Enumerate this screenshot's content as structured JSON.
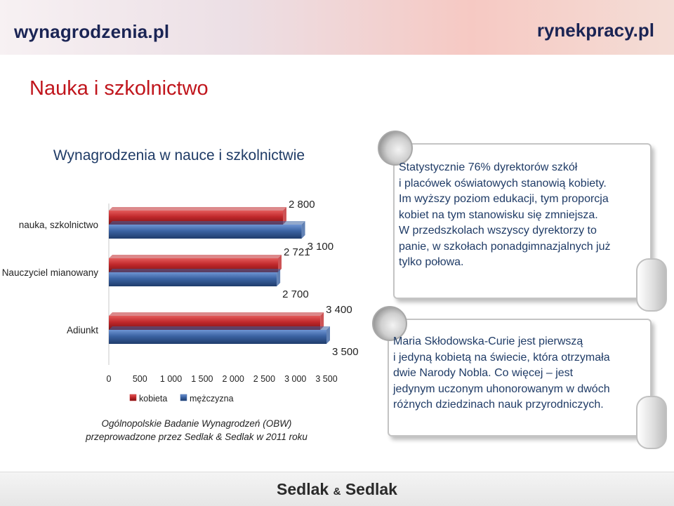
{
  "header": {
    "logo_left": "wynagrodzenia.pl",
    "logo_right": "rynekpracy.pl"
  },
  "page_title": "Nauka i szkolnictwo",
  "chart_data": {
    "type": "bar",
    "orientation": "horizontal",
    "title": "Wynagrodzenia w nauce i szkolnictwie",
    "categories": [
      "nauka, szkolnictwo",
      "Nauczyciel mianowany",
      "Adiunkt"
    ],
    "series": [
      {
        "name": "kobieta",
        "color": "#c0282b",
        "values": [
          2800,
          2721,
          3400
        ],
        "labels": [
          "2 800",
          "2 721",
          "3 400"
        ]
      },
      {
        "name": "mężczyzna",
        "color": "#3b63a3",
        "values": [
          3100,
          2700,
          3500
        ],
        "labels": [
          "3 100",
          "2 700",
          "3 500"
        ]
      }
    ],
    "xlim": [
      0,
      3500
    ],
    "xticks": [
      0,
      500,
      1000,
      1500,
      2000,
      2500,
      3000,
      3500
    ],
    "xtick_labels": [
      "0",
      "500",
      "1 000",
      "1 500",
      "2 000",
      "2 500",
      "3 000",
      "3 500"
    ],
    "legend_position": "bottom",
    "grid": false
  },
  "source": {
    "line1": "Ogólnopolskie Badanie Wynagrodzeń (OBW)",
    "line2": "przeprowadzone przez Sedlak & Sedlak w 2011 roku"
  },
  "callout_top": {
    "lines": [
      "Statystycznie 76% dyrektorów szkół",
      "i placówek oświatowych stanowią kobiety.",
      "Im wyższy poziom edukacji, tym proporcja",
      "kobiet na tym stanowisku się zmniejsza.",
      "W przedszkolach wszyscy dyrektorzy to",
      "panie, w szkołach ponadgimnazjalnych już",
      "tylko połowa."
    ]
  },
  "callout_bottom": {
    "lines": [
      "Maria Skłodowska-Curie jest pierwszą",
      "i jedyną kobietą na świecie, która otrzymała",
      "dwie Narody Nobla. Co więcej – jest",
      "jedynym uczonym uhonorowanym w dwóch",
      "różnych dziedzinach nauk przyrodniczych."
    ]
  },
  "footer": {
    "logo_part1": "Sedlak",
    "logo_amp": "&",
    "logo_part2": "Sedlak"
  }
}
